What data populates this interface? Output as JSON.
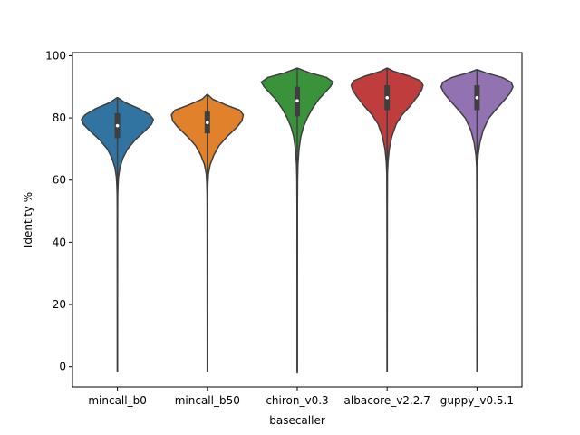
{
  "chart_data": {
    "type": "violin",
    "title": "",
    "xlabel": "basecaller",
    "ylabel": "Identity %",
    "ylim": [
      -6.5,
      101
    ],
    "yticks": [
      0,
      20,
      40,
      60,
      80,
      100
    ],
    "grid": false,
    "legend": "none",
    "categories": [
      "mincall_b0",
      "mincall_b50",
      "chiron_v0.3",
      "albacore_v2.2.7",
      "guppy_v0.5.1"
    ],
    "series": [
      {
        "category": "mincall_b0",
        "color": "#3274a1",
        "min": -1.5,
        "q1": 73.5,
        "median": 77.5,
        "q3": 81.5,
        "max": 86.5,
        "density": [
          [
            -1.5,
            0.003
          ],
          [
            20,
            0.004
          ],
          [
            50,
            0.006
          ],
          [
            55,
            0.008
          ],
          [
            58,
            0.015
          ],
          [
            61,
            0.03
          ],
          [
            64,
            0.07
          ],
          [
            67,
            0.15
          ],
          [
            70,
            0.28
          ],
          [
            73,
            0.5
          ],
          [
            76,
            0.78
          ],
          [
            78,
            0.95
          ],
          [
            79.5,
            1.0
          ],
          [
            81,
            0.9
          ],
          [
            83,
            0.6
          ],
          [
            85,
            0.2
          ],
          [
            86.5,
            0.01
          ]
        ]
      },
      {
        "category": "mincall_b50",
        "color": "#e1812c",
        "min": -1.5,
        "q1": 75,
        "median": 78.5,
        "q3": 82,
        "max": 87.5,
        "density": [
          [
            -1.5,
            0.003
          ],
          [
            20,
            0.004
          ],
          [
            50,
            0.006
          ],
          [
            55,
            0.008
          ],
          [
            59,
            0.015
          ],
          [
            62,
            0.03
          ],
          [
            65,
            0.08
          ],
          [
            68,
            0.18
          ],
          [
            71,
            0.32
          ],
          [
            74,
            0.55
          ],
          [
            77,
            0.82
          ],
          [
            79,
            0.96
          ],
          [
            81,
            1.0
          ],
          [
            82.5,
            0.9
          ],
          [
            84,
            0.55
          ],
          [
            86,
            0.15
          ],
          [
            87.5,
            0.01
          ]
        ]
      },
      {
        "category": "chiron_v0.3",
        "color": "#3a923a",
        "min": -2,
        "q1": 80.5,
        "median": 85.5,
        "q3": 90,
        "max": 96,
        "density": [
          [
            -2,
            0.003
          ],
          [
            20,
            0.004
          ],
          [
            50,
            0.006
          ],
          [
            60,
            0.01
          ],
          [
            65,
            0.02
          ],
          [
            70,
            0.05
          ],
          [
            74,
            0.1
          ],
          [
            77,
            0.17
          ],
          [
            80,
            0.28
          ],
          [
            83,
            0.42
          ],
          [
            86,
            0.6
          ],
          [
            88,
            0.76
          ],
          [
            90,
            0.92
          ],
          [
            91.5,
            1.0
          ],
          [
            93,
            0.82
          ],
          [
            94.5,
            0.35
          ],
          [
            96,
            0.01
          ]
        ]
      },
      {
        "category": "albacore_v2.2.7",
        "color": "#c03d3e",
        "min": -1.5,
        "q1": 82.5,
        "median": 86.5,
        "q3": 90.5,
        "max": 96,
        "density": [
          [
            -1.5,
            0.003
          ],
          [
            20,
            0.004
          ],
          [
            50,
            0.006
          ],
          [
            62,
            0.01
          ],
          [
            66,
            0.025
          ],
          [
            70,
            0.06
          ],
          [
            74,
            0.13
          ],
          [
            78,
            0.25
          ],
          [
            81,
            0.42
          ],
          [
            84,
            0.65
          ],
          [
            87,
            0.85
          ],
          [
            89,
            0.96
          ],
          [
            90.5,
            1.0
          ],
          [
            92,
            0.92
          ],
          [
            93.5,
            0.6
          ],
          [
            95,
            0.18
          ],
          [
            96,
            0.01
          ]
        ]
      },
      {
        "category": "guppy_v0.5.1",
        "color": "#9372b2",
        "min": -1.5,
        "q1": 82.5,
        "median": 86.5,
        "q3": 90.5,
        "max": 95.5,
        "density": [
          [
            -1.5,
            0.003
          ],
          [
            20,
            0.004
          ],
          [
            50,
            0.006
          ],
          [
            64,
            0.01
          ],
          [
            68,
            0.03
          ],
          [
            72,
            0.08
          ],
          [
            76,
            0.17
          ],
          [
            80,
            0.33
          ],
          [
            83,
            0.55
          ],
          [
            86,
            0.78
          ],
          [
            88,
            0.92
          ],
          [
            90,
            1.0
          ],
          [
            91.5,
            0.95
          ],
          [
            93,
            0.7
          ],
          [
            94.5,
            0.25
          ],
          [
            95.5,
            0.01
          ]
        ]
      }
    ]
  }
}
